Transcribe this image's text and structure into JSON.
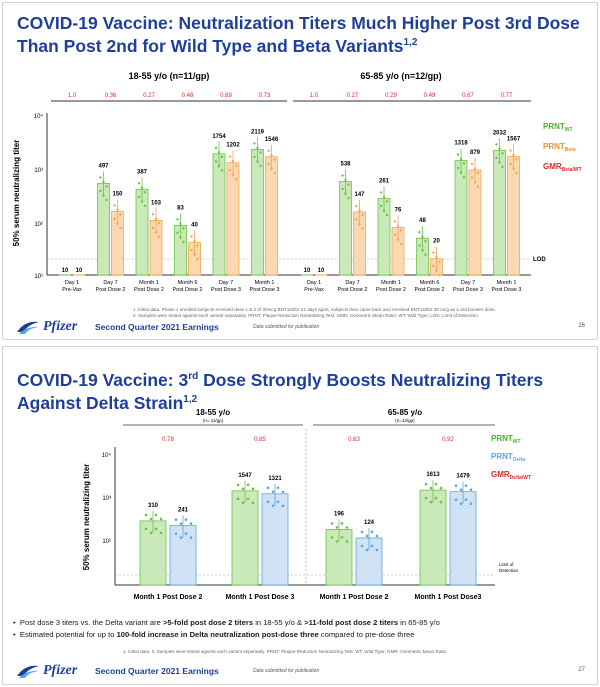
{
  "slide1": {
    "title_line1": "COVID-19 Vaccine: Neutralization Titers Much Higher Post 3rd Dose",
    "title_line2": "Than Post 2nd for Wild Type and Beta Variants",
    "title_sup": "1,2",
    "group_left": "18-55 y/o (n=11/gp)",
    "group_right": "65-85 y/o (n=12/gp)",
    "gmr_left": [
      "1.0",
      "0.36",
      "0.27",
      "0.48",
      "0.69",
      "0.73"
    ],
    "gmr_right": [
      "1.0",
      "0.27",
      "0.29",
      "0.49",
      "0.67",
      "0.77"
    ],
    "ylabel": "50% serum neutralizing titer",
    "yticks": [
      "10⁴",
      "10³",
      "10²",
      "10¹"
    ],
    "values_left": [
      [
        "10",
        "10"
      ],
      [
        "497",
        "150"
      ],
      [
        "387",
        "103"
      ],
      [
        "83",
        "40"
      ],
      [
        "1754",
        "1202"
      ],
      [
        "2119",
        "1546"
      ]
    ],
    "values_right": [
      [
        "10",
        "10"
      ],
      [
        "538",
        "147"
      ],
      [
        "261",
        "76"
      ],
      [
        "48",
        "20"
      ],
      [
        "1318",
        "879"
      ],
      [
        "2032",
        "1567"
      ]
    ],
    "xlabels": [
      [
        "Day 1",
        "Pre-Vax"
      ],
      [
        "Day 7",
        "Post Dose 2"
      ],
      [
        "Month 1",
        "Post Dose 2"
      ],
      [
        "Month 6",
        "Post Dose 2"
      ],
      [
        "Day 7",
        "Post Dose 3"
      ],
      [
        "Month 1",
        "Post Dose 3"
      ]
    ],
    "lod": "LOD",
    "footnote1": "1. Initial data. Phase 1 enrolled subjects received dose 1 & 2 of 30mcg BNT162b2 21 days apart, subjects then came back and received BNT162b2 30 mcg as a 3rd booster dose.",
    "footnote2": "2. Samples were tested against each variant separately. PRNT: Plaque Reduction Neutralizing Test; GMR: Geometric Mean Ratio; WT: Wild Type; LOD: Limit of Detection",
    "earnings": "Second Quarter 2021 Earnings",
    "submitted": "Data submitted for publication",
    "page": "26"
  },
  "slide2": {
    "title_a": "COVID-19 Vaccine: 3",
    "title_ord": "rd",
    "title_b": " Dose Strongly Boosts Neutralizing Titers",
    "title_line2": "Against Delta Strain",
    "title_sup": "1,2",
    "group_left": "18-55 y/o",
    "group_left_n": "(n= 11/gp)",
    "group_right": "65-85 y/o",
    "group_right_n": "(n=12/gp)",
    "gmr": [
      "0.78",
      "0.85",
      "0.63",
      "0.92"
    ],
    "values": [
      "310",
      "241",
      "1547",
      "1321",
      "196",
      "124",
      "1613",
      "1479"
    ],
    "xlabels": [
      "Month 1 Post Dose 2",
      "Month 1 Post Dose 3",
      "Month 1 Post Dose 2",
      "Month 1 Post Dose3"
    ],
    "lod_line1": "Limit of",
    "lod_line2": "Detection",
    "bullet1_a": "Post dose 3 titers vs. the Delta variant are ",
    "bullet1_b": ">5-fold post dose 2 titers",
    "bullet1_c": " in 18-55 y/o & ",
    "bullet1_d": ">11-fold post dose 2 titers",
    "bullet1_e": " in 65-85 y/o",
    "bullet2_a": "Estimated potential for up to ",
    "bullet2_b": "100-fold increase in Delta neutralization post-dose three",
    "bullet2_c": " compared to pre-dose three",
    "footnote": "1. Initial data. 2. Samples were tested against each variant separately. PRNT: Plaque Reduction Neutralizing Test; WT: Wild Type; GMR: Geometric Mean Ratio",
    "earnings": "Second Quarter 2021 Earnings",
    "submitted": "Data submitted for publication",
    "page": "27"
  },
  "legend": {
    "prnt_wt": "PRNT",
    "prnt_wt_sub": "WT",
    "prnt_beta": "PRNT",
    "prnt_beta_sub": "Beta",
    "prnt_delta": "PRNT",
    "prnt_delta_sub": "Delta",
    "gmr": "GMR",
    "gmr_sub_beta": "Beta/WT",
    "gmr_sub_delta": "Delta/WT"
  },
  "brand": {
    "logo_text": "Pfizer"
  },
  "colors": {
    "title_blue": "#1f3f9a",
    "wt_green": "#6cc24a",
    "wt_fill": "#c9e9b8",
    "beta_orange": "#f2a550",
    "beta_fill": "#fbd9b0",
    "delta_blue": "#5aa6e0",
    "delta_fill": "#cfe3f4",
    "gmr_red": "#d62b2b"
  },
  "chart_data": [
    {
      "type": "bar",
      "title": "18-55 y/o (n=11/gp)",
      "ylabel": "50% serum neutralizing titer",
      "yscale": "log",
      "ylim": [
        10,
        10000
      ],
      "categories": [
        "Day 1 Pre-Vax",
        "Day 7 Post Dose 2",
        "Month 1 Post Dose 2",
        "Month 6 Post Dose 2",
        "Day 7 Post Dose 3",
        "Month 1 Post Dose 3"
      ],
      "series": [
        {
          "name": "PRNT WT",
          "values": [
            10,
            497,
            387,
            83,
            1754,
            2119
          ]
        },
        {
          "name": "PRNT Beta",
          "values": [
            10,
            150,
            103,
            40,
            1202,
            1546
          ]
        },
        {
          "name": "GMR Beta/WT",
          "values": [
            1.0,
            0.36,
            0.27,
            0.48,
            0.69,
            0.73
          ]
        }
      ],
      "legend": "right"
    },
    {
      "type": "bar",
      "title": "65-85 y/o (n=12/gp)",
      "yscale": "log",
      "ylim": [
        10,
        10000
      ],
      "categories": [
        "Day 1 Pre-Vax",
        "Day 7 Post Dose 2",
        "Month 1 Post Dose 2",
        "Month 6 Post Dose 2",
        "Day 7 Post Dose 3",
        "Month 1 Post Dose 3"
      ],
      "series": [
        {
          "name": "PRNT WT",
          "values": [
            10,
            538,
            261,
            48,
            1318,
            2032
          ]
        },
        {
          "name": "PRNT Beta",
          "values": [
            10,
            147,
            76,
            20,
            879,
            1567
          ]
        },
        {
          "name": "GMR Beta/WT",
          "values": [
            1.0,
            0.27,
            0.29,
            0.49,
            0.67,
            0.77
          ]
        }
      ],
      "legend": "right"
    },
    {
      "type": "bar",
      "title": "18-55 y/o / 65-85 y/o",
      "ylabel": "50% serum neutralizing titer",
      "yscale": "log",
      "ylim": [
        10,
        10000
      ],
      "categories": [
        "18-55 Month 1 Post Dose 2",
        "18-55 Month 1 Post Dose 3",
        "65-85 Month 1 Post Dose 2",
        "65-85 Month 1 Post Dose3"
      ],
      "series": [
        {
          "name": "PRNT WT",
          "values": [
            310,
            1547,
            196,
            1613
          ]
        },
        {
          "name": "PRNT Delta",
          "values": [
            241,
            1321,
            124,
            1479
          ]
        },
        {
          "name": "GMR Delta/WT",
          "values": [
            0.78,
            0.85,
            0.63,
            0.92
          ]
        }
      ],
      "legend": "right"
    }
  ]
}
